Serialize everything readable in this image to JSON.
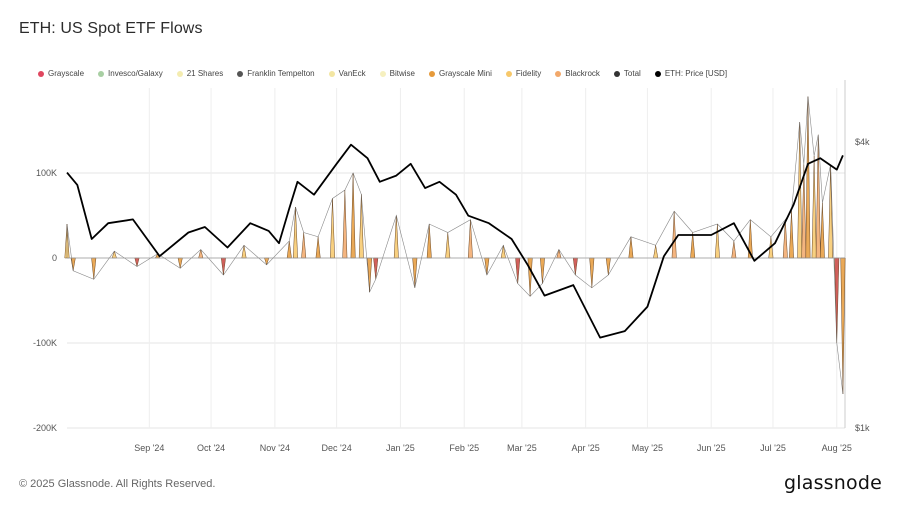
{
  "page": {
    "title": "ETH: US Spot ETF Flows",
    "footer": "© 2025 Glassnode. All Rights Reserved.",
    "logo": "glassnode"
  },
  "legend": [
    {
      "label": "Grayscale",
      "color": "#e0475f"
    },
    {
      "label": "Invesco/Galaxy",
      "color": "#a8cfa3"
    },
    {
      "label": "21 Shares",
      "color": "#f4ecb0"
    },
    {
      "label": "Franklin Tempelton",
      "color": "#555555"
    },
    {
      "label": "VanEck",
      "color": "#f3e6a2"
    },
    {
      "label": "Bitwise",
      "color": "#f6f0bf"
    },
    {
      "label": "Grayscale Mini",
      "color": "#e69a3a"
    },
    {
      "label": "Fidelity",
      "color": "#f7c86a"
    },
    {
      "label": "Blackrock",
      "color": "#f2a86a"
    },
    {
      "label": "Total",
      "color": "#333333"
    },
    {
      "label": "ETH: Price [USD]",
      "color": "#000000"
    }
  ],
  "chart_data": {
    "type": "bar",
    "title": "ETH: US Spot ETF Flows",
    "x_ticks": [
      "Sep '24",
      "Oct '24",
      "Nov '24",
      "Dec '24",
      "Jan '25",
      "Feb '25",
      "Mar '25",
      "Apr '25",
      "May '25",
      "Jun '25",
      "Jul '25",
      "Aug '25"
    ],
    "y_left": {
      "ticks": [
        "100K",
        "0",
        "-100K",
        "-200K"
      ],
      "tick_values": [
        100000,
        0,
        -100000,
        -200000
      ],
      "range": [
        -200000,
        200000
      ]
    },
    "y_right": {
      "ticks": [
        "$4k",
        "$1k"
      ],
      "tick_values": [
        4000,
        1000
      ],
      "scale": "log",
      "range": [
        1000,
        5200
      ]
    },
    "x_range": [
      "2024-07-23",
      "2025-08-05"
    ],
    "gridlines": true,
    "total_flows": {
      "name": "Total",
      "x": [
        "2024-07-23",
        "2024-07-26",
        "2024-08-05",
        "2024-08-15",
        "2024-08-26",
        "2024-09-05",
        "2024-09-16",
        "2024-09-26",
        "2024-10-07",
        "2024-10-17",
        "2024-10-28",
        "2024-11-08",
        "2024-11-11",
        "2024-11-15",
        "2024-11-22",
        "2024-11-29",
        "2024-12-05",
        "2024-12-09",
        "2024-12-13",
        "2024-12-17",
        "2024-12-20",
        "2024-12-30",
        "2025-01-08",
        "2025-01-15",
        "2025-01-24",
        "2025-02-04",
        "2025-02-12",
        "2025-02-20",
        "2025-02-27",
        "2025-03-05",
        "2025-03-11",
        "2025-03-19",
        "2025-03-27",
        "2025-04-04",
        "2025-04-12",
        "2025-04-23",
        "2025-05-05",
        "2025-05-14",
        "2025-05-23",
        "2025-06-04",
        "2025-06-12",
        "2025-06-20",
        "2025-06-30",
        "2025-07-07",
        "2025-07-10",
        "2025-07-14",
        "2025-07-16",
        "2025-07-18",
        "2025-07-21",
        "2025-07-23",
        "2025-07-25",
        "2025-07-29",
        "2025-08-01",
        "2025-08-04"
      ],
      "values": [
        40000,
        -15000,
        -25000,
        8000,
        -10000,
        5000,
        -12000,
        10000,
        -20000,
        15000,
        -8000,
        20000,
        60000,
        30000,
        25000,
        70000,
        80000,
        100000,
        75000,
        -40000,
        -25000,
        50000,
        -35000,
        40000,
        30000,
        45000,
        -20000,
        15000,
        -30000,
        -45000,
        -30000,
        10000,
        -20000,
        -35000,
        -20000,
        25000,
        15000,
        55000,
        30000,
        40000,
        20000,
        45000,
        25000,
        45000,
        55000,
        160000,
        110000,
        190000,
        120000,
        145000,
        65000,
        110000,
        -100000,
        -160000
      ]
    },
    "eth_price": {
      "name": "ETH: Price [USD]",
      "x": [
        "2024-07-23",
        "2024-07-28",
        "2024-08-04",
        "2024-08-12",
        "2024-08-24",
        "2024-09-06",
        "2024-09-20",
        "2024-09-28",
        "2024-10-09",
        "2024-10-20",
        "2024-10-29",
        "2024-11-03",
        "2024-11-08",
        "2024-11-12",
        "2024-11-20",
        "2024-12-01",
        "2024-12-08",
        "2024-12-16",
        "2024-12-22",
        "2024-12-30",
        "2025-01-06",
        "2025-01-13",
        "2025-01-20",
        "2025-01-28",
        "2025-02-03",
        "2025-02-13",
        "2025-02-24",
        "2025-03-04",
        "2025-03-12",
        "2025-03-26",
        "2025-04-08",
        "2025-04-20",
        "2025-05-01",
        "2025-05-09",
        "2025-05-16",
        "2025-06-01",
        "2025-06-12",
        "2025-06-22",
        "2025-07-02",
        "2025-07-11",
        "2025-07-18",
        "2025-07-24",
        "2025-08-01",
        "2025-08-04"
      ],
      "values": [
        3450,
        3250,
        2500,
        2700,
        2750,
        2300,
        2580,
        2650,
        2400,
        2700,
        2600,
        2450,
        2900,
        3300,
        3100,
        3600,
        3950,
        3700,
        3300,
        3400,
        3600,
        3200,
        3300,
        3100,
        2800,
        2700,
        2500,
        2200,
        1900,
        2000,
        1550,
        1600,
        1800,
        2300,
        2550,
        2550,
        2700,
        2250,
        2450,
        2950,
        3600,
        3700,
        3500,
        3750
      ]
    }
  }
}
